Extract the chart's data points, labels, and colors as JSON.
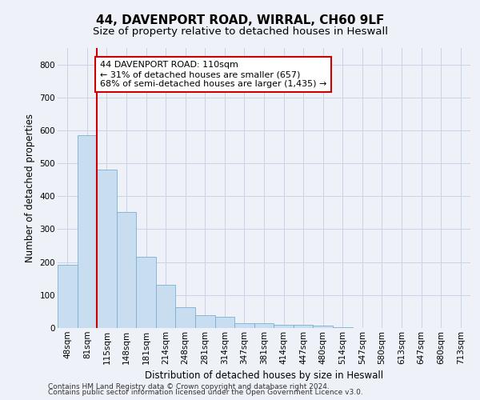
{
  "title_line1": "44, DAVENPORT ROAD, WIRRAL, CH60 9LF",
  "title_line2": "Size of property relative to detached houses in Heswall",
  "xlabel": "Distribution of detached houses by size in Heswall",
  "ylabel": "Number of detached properties",
  "footer_line1": "Contains HM Land Registry data © Crown copyright and database right 2024.",
  "footer_line2": "Contains public sector information licensed under the Open Government Licence v3.0.",
  "bar_labels": [
    "48sqm",
    "81sqm",
    "115sqm",
    "148sqm",
    "181sqm",
    "214sqm",
    "248sqm",
    "281sqm",
    "314sqm",
    "347sqm",
    "381sqm",
    "414sqm",
    "447sqm",
    "480sqm",
    "514sqm",
    "547sqm",
    "580sqm",
    "613sqm",
    "647sqm",
    "680sqm",
    "713sqm"
  ],
  "bar_values": [
    192,
    585,
    480,
    352,
    215,
    130,
    63,
    40,
    33,
    15,
    15,
    10,
    10,
    7,
    2,
    1,
    1,
    0,
    0,
    0,
    0
  ],
  "bar_color": "#c8ddf0",
  "bar_edge_color": "#7bafd4",
  "annotation_text": "44 DAVENPORT ROAD: 110sqm\n← 31% of detached houses are smaller (657)\n68% of semi-detached houses are larger (1,435) →",
  "annotation_box_color": "white",
  "annotation_box_edge_color": "#cc0000",
  "vline_color": "#cc0000",
  "ylim": [
    0,
    850
  ],
  "yticks": [
    0,
    100,
    200,
    300,
    400,
    500,
    600,
    700,
    800
  ],
  "grid_color": "#c8d4e8",
  "background_color": "#eef2f8",
  "title_fontsize": 11,
  "subtitle_fontsize": 9.5,
  "tick_fontsize": 7.5,
  "ylabel_fontsize": 8.5,
  "xlabel_fontsize": 8.5,
  "annotation_fontsize": 8,
  "footer_fontsize": 6.5
}
